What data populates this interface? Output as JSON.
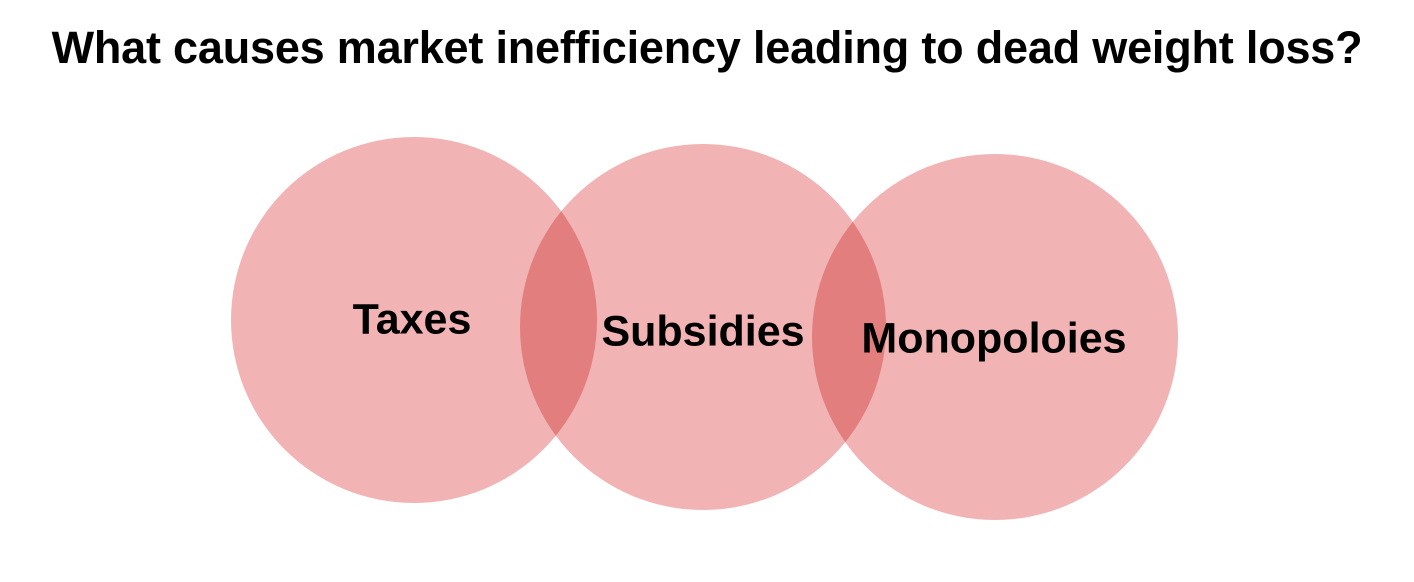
{
  "title": "What causes market inefficiency leading to dead weight loss?",
  "circles": [
    {
      "label": "Taxes"
    },
    {
      "label": "Subsidies"
    },
    {
      "label": "Monopoloies"
    }
  ],
  "colors": {
    "circle_fill": "#f1b3b3",
    "overlap_fill": "#e98c8c",
    "text": "#000000",
    "background": "#ffffff"
  }
}
